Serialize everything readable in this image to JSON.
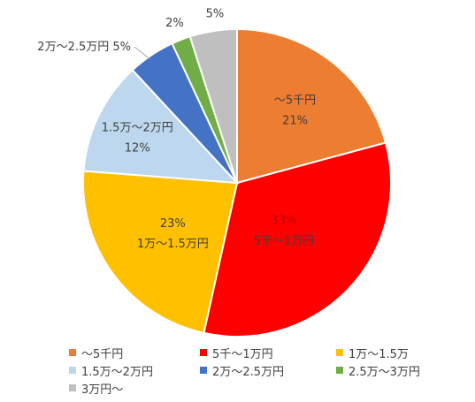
{
  "chart_data": {
    "type": "pie",
    "slices": [
      {
        "label": "～5千円",
        "value": 21,
        "value_label": "21%",
        "color": "#ED7D31"
      },
      {
        "label": "5千～1万円",
        "value": 33,
        "value_label": "33%",
        "color": "#FF0000"
      },
      {
        "label": "1万～1.5万",
        "value": 23,
        "value_label": "23%",
        "color": "#FFC000"
      },
      {
        "label": "1.5万～2万円",
        "value": 12,
        "value_label": "12%",
        "color": "#BDD7EE"
      },
      {
        "label": "2万～2.5万円",
        "value": 5,
        "value_label": "5%",
        "color": "#4472C4"
      },
      {
        "label": "2.5万～3万円",
        "value": 2,
        "value_label": "2%",
        "color": "#70AD47"
      },
      {
        "label": "3万円～",
        "value": 5,
        "value_label": "5%",
        "color": "#BFBFBF"
      }
    ],
    "slice_labels": [
      {
        "category": "～5千円",
        "value": "21%"
      },
      {
        "category": "5千～1万円",
        "value": "33%"
      },
      {
        "category": "1万～1.5万円",
        "value": "23%"
      },
      {
        "category": "1.5万～2万円",
        "value": "12%"
      },
      {
        "category": "2万～2.5万円",
        "value": "5%"
      },
      {
        "category": "",
        "value": "2%"
      },
      {
        "category": "",
        "value": "5%"
      }
    ],
    "legend": [
      [
        "～5千円",
        "5千～1万円",
        "1万～1.5万"
      ],
      [
        "1.5万～2万円",
        "2万～2.5万円",
        "2.5万～3万円"
      ],
      [
        "3万円～"
      ]
    ],
    "legend_position": "bottom"
  }
}
